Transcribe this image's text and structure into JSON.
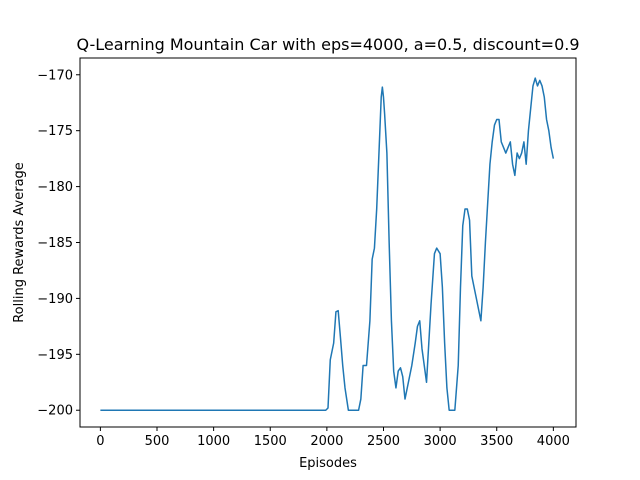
{
  "chart_data": {
    "type": "line",
    "title": "Q-Learning Mountain Car with eps=4000, a=0.5, discount=0.9",
    "xlabel": "Episodes",
    "ylabel": "Rolling Rewards Average",
    "xlim": [
      -180,
      4200
    ],
    "ylim": [
      -201.5,
      -168.5
    ],
    "xticks": [
      0,
      500,
      1000,
      1500,
      2000,
      2500,
      3000,
      3500,
      4000
    ],
    "yticks": [
      -200,
      -195,
      -190,
      -185,
      -180,
      -175,
      -170
    ],
    "grid": false,
    "line_color": "#1f77b4",
    "series": [
      {
        "x": [
          0,
          500,
          1000,
          1500,
          1900,
          1990,
          2010,
          2030,
          2060,
          2080,
          2100,
          2120,
          2140,
          2160,
          2190,
          2280,
          2300,
          2320,
          2350,
          2380,
          2400,
          2420,
          2440,
          2460,
          2480,
          2490,
          2500,
          2510,
          2530,
          2550,
          2570,
          2590,
          2610,
          2630,
          2650,
          2670,
          2690,
          2720,
          2750,
          2780,
          2800,
          2820,
          2840,
          2860,
          2880,
          2900,
          2920,
          2950,
          2970,
          3000,
          3020,
          3040,
          3060,
          3080,
          3100,
          3130,
          3160,
          3180,
          3200,
          3220,
          3240,
          3260,
          3280,
          3300,
          3320,
          3340,
          3360,
          3380,
          3400,
          3420,
          3440,
          3460,
          3480,
          3500,
          3520,
          3540,
          3560,
          3580,
          3600,
          3620,
          3640,
          3660,
          3680,
          3700,
          3720,
          3740,
          3760,
          3780,
          3800,
          3820,
          3840,
          3860,
          3880,
          3900,
          3920,
          3940,
          3960,
          3980,
          4000
        ],
        "y": [
          -200,
          -200,
          -200,
          -200,
          -200,
          -200,
          -199.8,
          -195.5,
          -194,
          -191.2,
          -191.1,
          -193.5,
          -196,
          -198,
          -200,
          -200,
          -199,
          -196,
          -196,
          -192,
          -186.5,
          -185.5,
          -182,
          -177,
          -172,
          -171.1,
          -172,
          -173.5,
          -177,
          -185,
          -192,
          -196.5,
          -198,
          -196.5,
          -196.2,
          -197,
          -199,
          -197.5,
          -196,
          -194,
          -192.5,
          -192,
          -194.5,
          -196,
          -197.5,
          -194,
          -190.5,
          -186,
          -185.5,
          -186,
          -189,
          -194,
          -198,
          -200,
          -200,
          -200,
          -196,
          -189,
          -183.5,
          -182,
          -182,
          -183,
          -188,
          -189,
          -190,
          -191,
          -192,
          -189,
          -185,
          -181.5,
          -178,
          -176,
          -174.5,
          -174,
          -174,
          -176,
          -176.5,
          -177,
          -176.5,
          -176,
          -178,
          -179,
          -177,
          -177.5,
          -177,
          -176,
          -178,
          -175,
          -173,
          -171,
          -170.3,
          -171,
          -170.5,
          -171,
          -172,
          -174,
          -175,
          -176.5,
          -177.5
        ]
      }
    ]
  }
}
